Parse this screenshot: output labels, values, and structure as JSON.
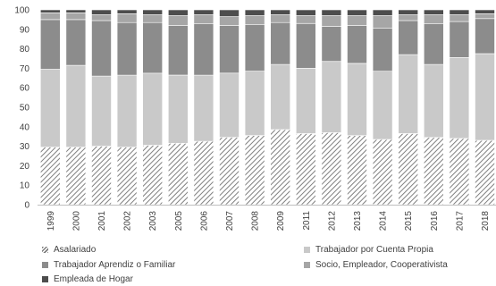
{
  "chart_data": {
    "type": "bar",
    "stacked": true,
    "percent": true,
    "categories": [
      "1999",
      "2000",
      "2001",
      "2002",
      "2003",
      "2005",
      "2006",
      "2007",
      "2008",
      "2009",
      "2011",
      "2012",
      "2013",
      "2014",
      "2015",
      "2016",
      "2017",
      "2018"
    ],
    "series": [
      {
        "name": "Asalariado",
        "color": "#7f7f7f",
        "pattern": "diagonal-hatch",
        "values": [
          29.5,
          29.5,
          30,
          29.5,
          30.5,
          31.5,
          32.5,
          34.5,
          35.5,
          38.5,
          36.5,
          37,
          35.5,
          33.5,
          36.5,
          34.5,
          34,
          33
        ]
      },
      {
        "name": "Trabajador por Cuenta Propia",
        "color": "#c9c9c9",
        "pattern": "solid",
        "values": [
          40,
          42,
          36,
          37,
          37,
          35,
          34,
          33,
          33,
          33.5,
          33.5,
          36.5,
          37,
          35,
          40.5,
          37.5,
          41.5,
          44.5
        ]
      },
      {
        "name": "Trabajador Aprendiz o Familiar",
        "color": "#8c8c8c",
        "pattern": "solid",
        "values": [
          25.5,
          23.5,
          28.5,
          27,
          26,
          25.5,
          26.5,
          24.5,
          24,
          21.5,
          23,
          18,
          19.5,
          22,
          17.5,
          21,
          18.5,
          18
        ]
      },
      {
        "name": "Socio, Empleador, Cooperativista",
        "color": "#a6a6a6",
        "pattern": "solid",
        "values": [
          3.5,
          3.5,
          3,
          4.5,
          4,
          5,
          4.5,
          4.5,
          4.5,
          4,
          4,
          5.5,
          5,
          6.5,
          3,
          4.5,
          3.5,
          2.5
        ]
      },
      {
        "name": "Empleada de Hogar",
        "color": "#4d4d4d",
        "pattern": "solid",
        "values": [
          1.5,
          1.5,
          2.5,
          2,
          2.5,
          3,
          2.5,
          3.5,
          3,
          2.5,
          3,
          3,
          3,
          3,
          2.5,
          2.5,
          2.5,
          2
        ]
      }
    ],
    "ylim": [
      0,
      100
    ],
    "yticks": [
      0,
      10,
      20,
      30,
      40,
      50,
      60,
      70,
      80,
      90,
      100
    ],
    "grid": false,
    "legend_position": "bottom"
  }
}
